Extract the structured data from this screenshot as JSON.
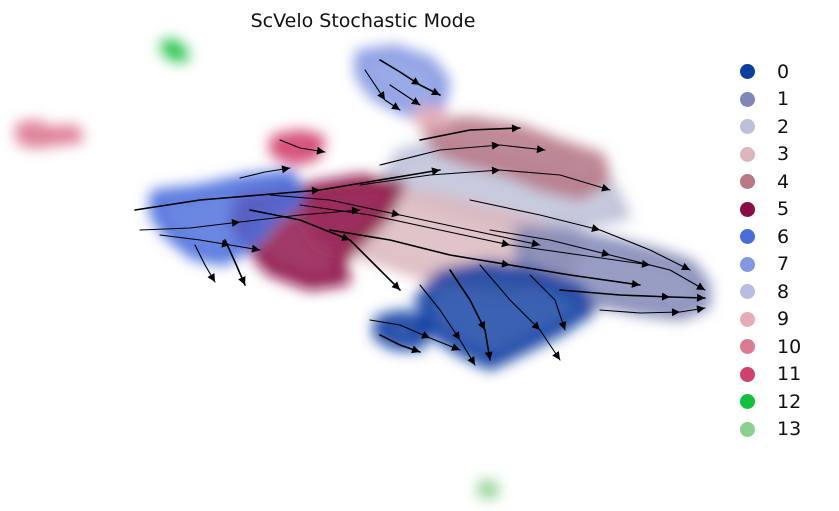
{
  "chart_data": {
    "type": "scatter",
    "title": "ScVelo Stochastic Mode",
    "xlabel": "",
    "ylabel": "",
    "grid": false,
    "legend_position": "right",
    "overlay": "velocity stream arrows",
    "series": [
      {
        "name": "0",
        "color": "#0a3ea1"
      },
      {
        "name": "1",
        "color": "#8087b6"
      },
      {
        "name": "2",
        "color": "#bcc0d8"
      },
      {
        "name": "3",
        "color": "#dbb7bd"
      },
      {
        "name": "4",
        "color": "#b87886"
      },
      {
        "name": "5",
        "color": "#8c0c46"
      },
      {
        "name": "6",
        "color": "#4a6ddc"
      },
      {
        "name": "7",
        "color": "#8497e2"
      },
      {
        "name": "8",
        "color": "#b7bde3"
      },
      {
        "name": "9",
        "color": "#e3aeb8"
      },
      {
        "name": "10",
        "color": "#dd7a93"
      },
      {
        "name": "11",
        "color": "#d2416d"
      },
      {
        "name": "12",
        "color": "#12c03e"
      },
      {
        "name": "13",
        "color": "#8bd08e"
      }
    ]
  }
}
